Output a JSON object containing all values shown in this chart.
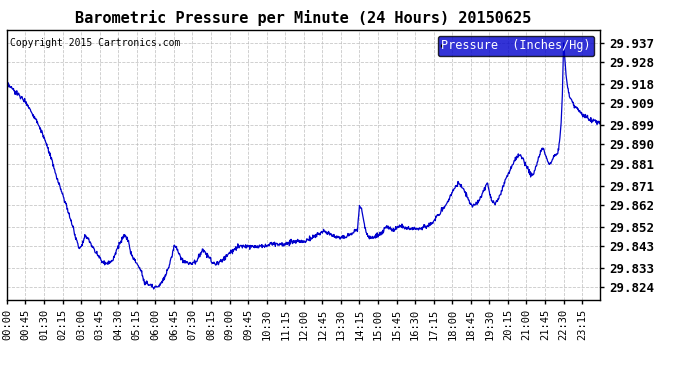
{
  "title": "Barometric Pressure per Minute (24 Hours) 20150625",
  "copyright": "Copyright 2015 Cartronics.com",
  "legend_label": "Pressure  (Inches/Hg)",
  "line_color": "#0000cc",
  "background_color": "#ffffff",
  "grid_color": "#bbbbbb",
  "y_ticks": [
    29.824,
    29.833,
    29.843,
    29.852,
    29.862,
    29.871,
    29.881,
    29.89,
    29.899,
    29.909,
    29.918,
    29.928,
    29.937
  ],
  "ylim": [
    29.818,
    29.943
  ],
  "x_tick_labels": [
    "00:00",
    "00:45",
    "01:30",
    "02:15",
    "03:00",
    "03:45",
    "04:30",
    "05:15",
    "06:00",
    "06:45",
    "07:30",
    "08:15",
    "09:00",
    "09:45",
    "10:30",
    "11:15",
    "12:00",
    "12:45",
    "13:30",
    "14:15",
    "15:00",
    "15:45",
    "16:30",
    "17:15",
    "18:00",
    "18:45",
    "19:30",
    "20:15",
    "21:00",
    "21:45",
    "22:30",
    "23:15"
  ],
  "figsize": [
    6.9,
    3.75
  ],
  "dpi": 100,
  "keypoints": [
    [
      0,
      29.918
    ],
    [
      45,
      29.91
    ],
    [
      75,
      29.9
    ],
    [
      90,
      29.893
    ],
    [
      105,
      29.885
    ],
    [
      120,
      29.875
    ],
    [
      135,
      29.867
    ],
    [
      150,
      29.858
    ],
    [
      160,
      29.852
    ],
    [
      165,
      29.848
    ],
    [
      170,
      29.845
    ],
    [
      175,
      29.842
    ],
    [
      180,
      29.843
    ],
    [
      190,
      29.848
    ],
    [
      200,
      29.845
    ],
    [
      210,
      29.842
    ],
    [
      215,
      29.84
    ],
    [
      225,
      29.838
    ],
    [
      230,
      29.836
    ],
    [
      240,
      29.835
    ],
    [
      255,
      29.836
    ],
    [
      270,
      29.843
    ],
    [
      285,
      29.848
    ],
    [
      295,
      29.845
    ],
    [
      300,
      29.84
    ],
    [
      305,
      29.838
    ],
    [
      315,
      29.835
    ],
    [
      325,
      29.832
    ],
    [
      330,
      29.828
    ],
    [
      335,
      29.826
    ],
    [
      340,
      29.826
    ],
    [
      345,
      29.825
    ],
    [
      350,
      29.825
    ],
    [
      355,
      29.824
    ],
    [
      360,
      29.824
    ],
    [
      365,
      29.824
    ],
    [
      370,
      29.825
    ],
    [
      375,
      29.826
    ],
    [
      380,
      29.828
    ],
    [
      390,
      29.832
    ],
    [
      400,
      29.838
    ],
    [
      405,
      29.843
    ],
    [
      410,
      29.843
    ],
    [
      415,
      29.84
    ],
    [
      420,
      29.838
    ],
    [
      430,
      29.836
    ],
    [
      440,
      29.835
    ],
    [
      450,
      29.835
    ],
    [
      460,
      29.836
    ],
    [
      465,
      29.838
    ],
    [
      470,
      29.84
    ],
    [
      475,
      29.841
    ],
    [
      480,
      29.84
    ],
    [
      490,
      29.838
    ],
    [
      495,
      29.836
    ],
    [
      500,
      29.835
    ],
    [
      510,
      29.835
    ],
    [
      520,
      29.836
    ],
    [
      530,
      29.838
    ],
    [
      540,
      29.84
    ],
    [
      550,
      29.841
    ],
    [
      555,
      29.842
    ],
    [
      560,
      29.843
    ],
    [
      570,
      29.843
    ],
    [
      580,
      29.843
    ],
    [
      590,
      29.843
    ],
    [
      600,
      29.843
    ],
    [
      610,
      29.843
    ],
    [
      620,
      29.843
    ],
    [
      630,
      29.843
    ],
    [
      640,
      29.844
    ],
    [
      650,
      29.844
    ],
    [
      660,
      29.844
    ],
    [
      670,
      29.844
    ],
    [
      680,
      29.844
    ],
    [
      690,
      29.845
    ],
    [
      700,
      29.845
    ],
    [
      710,
      29.845
    ],
    [
      720,
      29.845
    ],
    [
      730,
      29.846
    ],
    [
      740,
      29.847
    ],
    [
      750,
      29.848
    ],
    [
      760,
      29.849
    ],
    [
      770,
      29.85
    ],
    [
      780,
      29.849
    ],
    [
      790,
      29.848
    ],
    [
      800,
      29.847
    ],
    [
      810,
      29.847
    ],
    [
      820,
      29.847
    ],
    [
      830,
      29.848
    ],
    [
      840,
      29.849
    ],
    [
      850,
      29.851
    ],
    [
      855,
      29.862
    ],
    [
      860,
      29.86
    ],
    [
      865,
      29.855
    ],
    [
      870,
      29.85
    ],
    [
      875,
      29.848
    ],
    [
      880,
      29.847
    ],
    [
      885,
      29.847
    ],
    [
      890,
      29.847
    ],
    [
      900,
      29.848
    ],
    [
      910,
      29.849
    ],
    [
      915,
      29.851
    ],
    [
      920,
      29.852
    ],
    [
      925,
      29.851
    ],
    [
      930,
      29.851
    ],
    [
      940,
      29.85
    ],
    [
      945,
      29.851
    ],
    [
      950,
      29.852
    ],
    [
      960,
      29.852
    ],
    [
      965,
      29.851
    ],
    [
      975,
      29.851
    ],
    [
      980,
      29.851
    ],
    [
      990,
      29.851
    ],
    [
      1000,
      29.851
    ],
    [
      1005,
      29.851
    ],
    [
      1010,
      29.852
    ],
    [
      1020,
      29.852
    ],
    [
      1025,
      29.853
    ],
    [
      1035,
      29.854
    ],
    [
      1040,
      29.856
    ],
    [
      1050,
      29.858
    ],
    [
      1060,
      29.861
    ],
    [
      1065,
      29.862
    ],
    [
      1070,
      29.864
    ],
    [
      1075,
      29.866
    ],
    [
      1080,
      29.868
    ],
    [
      1085,
      29.87
    ],
    [
      1090,
      29.871
    ],
    [
      1095,
      29.872
    ],
    [
      1100,
      29.871
    ],
    [
      1105,
      29.87
    ],
    [
      1110,
      29.868
    ],
    [
      1115,
      29.866
    ],
    [
      1120,
      29.864
    ],
    [
      1125,
      29.862
    ],
    [
      1130,
      29.862
    ],
    [
      1135,
      29.862
    ],
    [
      1140,
      29.863
    ],
    [
      1145,
      29.864
    ],
    [
      1150,
      29.866
    ],
    [
      1155,
      29.868
    ],
    [
      1160,
      29.87
    ],
    [
      1165,
      29.872
    ],
    [
      1170,
      29.868
    ],
    [
      1175,
      29.864
    ],
    [
      1180,
      29.863
    ],
    [
      1185,
      29.863
    ],
    [
      1190,
      29.864
    ],
    [
      1195,
      29.866
    ],
    [
      1200,
      29.869
    ],
    [
      1210,
      29.874
    ],
    [
      1215,
      29.876
    ],
    [
      1220,
      29.878
    ],
    [
      1225,
      29.88
    ],
    [
      1230,
      29.882
    ],
    [
      1235,
      29.884
    ],
    [
      1245,
      29.885
    ],
    [
      1250,
      29.884
    ],
    [
      1255,
      29.882
    ],
    [
      1260,
      29.88
    ],
    [
      1265,
      29.878
    ],
    [
      1270,
      29.876
    ],
    [
      1275,
      29.876
    ],
    [
      1280,
      29.878
    ],
    [
      1285,
      29.881
    ],
    [
      1290,
      29.884
    ],
    [
      1295,
      29.887
    ],
    [
      1300,
      29.889
    ],
    [
      1305,
      29.886
    ],
    [
      1310,
      29.883
    ],
    [
      1315,
      29.881
    ],
    [
      1320,
      29.882
    ],
    [
      1325,
      29.884
    ],
    [
      1330,
      29.885
    ],
    [
      1335,
      29.886
    ],
    [
      1338,
      29.888
    ],
    [
      1341,
      29.893
    ],
    [
      1344,
      29.9
    ],
    [
      1347,
      29.913
    ],
    [
      1350,
      29.937
    ],
    [
      1353,
      29.93
    ],
    [
      1356,
      29.922
    ],
    [
      1360,
      29.916
    ],
    [
      1365,
      29.912
    ],
    [
      1375,
      29.908
    ],
    [
      1385,
      29.906
    ],
    [
      1395,
      29.904
    ],
    [
      1410,
      29.902
    ],
    [
      1425,
      29.901
    ],
    [
      1439,
      29.9
    ]
  ]
}
